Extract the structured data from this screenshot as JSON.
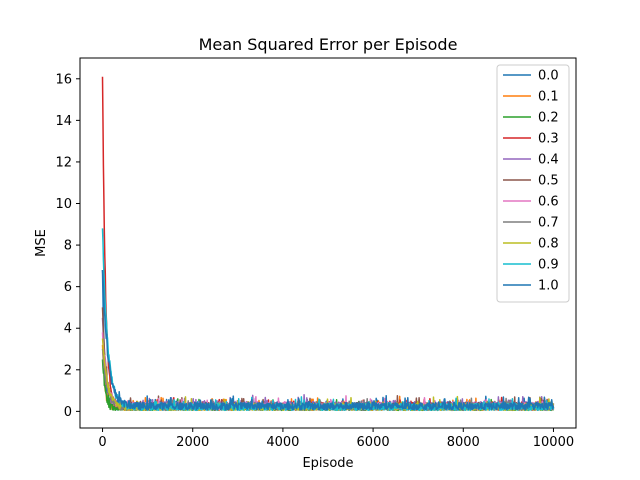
{
  "chart_data": {
    "type": "line",
    "title": "Mean Squared Error per Episode",
    "xlabel": "Episode",
    "ylabel": "MSE",
    "xlim": [
      -500,
      10500
    ],
    "ylim": [
      -0.8,
      17
    ],
    "xticks": [
      0,
      2000,
      4000,
      6000,
      8000,
      10000
    ],
    "xtick_labels": [
      "0",
      "2000",
      "4000",
      "6000",
      "8000",
      "10000"
    ],
    "yticks": [
      0,
      2,
      4,
      6,
      8,
      10,
      12,
      14,
      16
    ],
    "ytick_labels": [
      "0",
      "2",
      "4",
      "6",
      "8",
      "10",
      "12",
      "14",
      "16"
    ],
    "grid": false,
    "legend_position": "top-right",
    "series": [
      {
        "name": "0.0",
        "color": "#1f77b4",
        "initial_mse": 6.8,
        "steady_mse": 0.25
      },
      {
        "name": "0.1",
        "color": "#ff7f0e",
        "initial_mse": 3.2,
        "steady_mse": 0.2
      },
      {
        "name": "0.2",
        "color": "#2ca02c",
        "initial_mse": 2.5,
        "steady_mse": 0.15
      },
      {
        "name": "0.3",
        "color": "#d62728",
        "initial_mse": 16.1,
        "steady_mse": 0.25
      },
      {
        "name": "0.4",
        "color": "#9467bd",
        "initial_mse": 4.5,
        "steady_mse": 0.3
      },
      {
        "name": "0.5",
        "color": "#8c564b",
        "initial_mse": 5.0,
        "steady_mse": 0.25
      },
      {
        "name": "0.6",
        "color": "#e377c2",
        "initial_mse": 3.8,
        "steady_mse": 0.25
      },
      {
        "name": "0.7",
        "color": "#7f7f7f",
        "initial_mse": 3.0,
        "steady_mse": 0.2
      },
      {
        "name": "0.8",
        "color": "#bcbd22",
        "initial_mse": 3.5,
        "steady_mse": 0.2
      },
      {
        "name": "0.9",
        "color": "#17becf",
        "initial_mse": 8.8,
        "steady_mse": 0.2
      },
      {
        "name": "1.0",
        "color": "#1f77b4",
        "initial_mse": 6.8,
        "steady_mse": 0.25
      }
    ]
  }
}
